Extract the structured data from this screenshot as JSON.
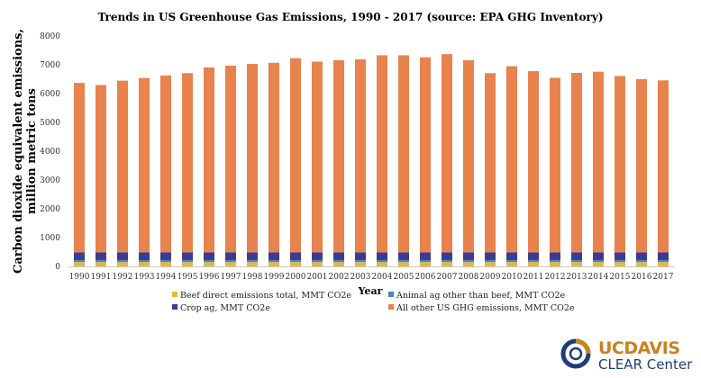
{
  "chart_data": {
    "type": "bar",
    "stacked": true,
    "title": "Trends in US Greenhouse Gas Emissions, 1990 - 2017 (source: EPA GHG Inventory)",
    "xlabel": "Year",
    "ylabel_lines": [
      "Carbon dioxide equivalent emissions,",
      "million metric tons"
    ],
    "ylim": [
      0,
      8000
    ],
    "yticks": [
      0,
      1000,
      2000,
      3000,
      4000,
      5000,
      6000,
      7000,
      8000
    ],
    "categories": [
      "1990",
      "1991",
      "1992",
      "1993",
      "1994",
      "1995",
      "1996",
      "1997",
      "1998",
      "1999",
      "2000",
      "2001",
      "2002",
      "2003",
      "2004",
      "2005",
      "2006",
      "2007",
      "2008",
      "2009",
      "2010",
      "2011",
      "2012",
      "2013",
      "2014",
      "2015",
      "2016",
      "2017"
    ],
    "series": [
      {
        "name": "Beef direct emissions total, MMT CO2e",
        "color": "#e8b83a",
        "values": [
          150,
          150,
          150,
          150,
          150,
          150,
          150,
          150,
          150,
          150,
          150,
          150,
          150,
          150,
          150,
          150,
          150,
          150,
          150,
          150,
          150,
          150,
          150,
          150,
          150,
          150,
          150,
          150
        ]
      },
      {
        "name": "Animal ag other than beef, MMT CO2e",
        "color": "#4a86c5",
        "values": [
          70,
          70,
          70,
          70,
          70,
          70,
          70,
          70,
          70,
          70,
          70,
          70,
          70,
          70,
          70,
          70,
          70,
          70,
          70,
          70,
          70,
          70,
          70,
          70,
          70,
          70,
          70,
          70
        ]
      },
      {
        "name": "Crop ag, MMT CO2e",
        "color": "#3e3a8c",
        "values": [
          270,
          270,
          270,
          270,
          270,
          270,
          270,
          270,
          270,
          270,
          270,
          270,
          270,
          270,
          270,
          270,
          270,
          270,
          270,
          270,
          270,
          270,
          270,
          270,
          270,
          270,
          270,
          270
        ]
      },
      {
        "name": "All other US GHG emissions, MMT CO2e",
        "color": "#e8834d",
        "values": [
          5880,
          5810,
          5960,
          6050,
          6140,
          6220,
          6420,
          6480,
          6540,
          6580,
          6740,
          6620,
          6670,
          6700,
          6840,
          6840,
          6770,
          6880,
          6670,
          6220,
          6460,
          6290,
          6060,
          6230,
          6270,
          6120,
          6010,
          5970
        ]
      }
    ],
    "legend": {
      "position": "bottom",
      "columns": 2
    },
    "grid": false
  },
  "logo": {
    "uc": "UCDAVIS",
    "sub": "CLEAR Center"
  }
}
